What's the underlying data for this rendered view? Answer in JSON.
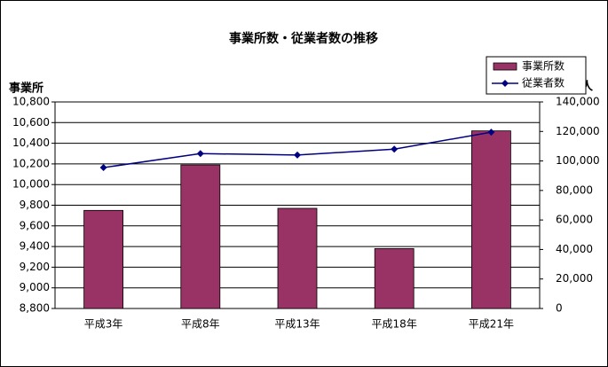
{
  "chart_data": {
    "type": "bar",
    "title": "事業所数・従業者数の推移",
    "y_label": "事業所",
    "y2_label": "人",
    "categories": [
      "平成3年",
      "平成8年",
      "平成13年",
      "平成18年",
      "平成21年"
    ],
    "series": [
      {
        "name": "事業所数",
        "type": "bar",
        "color": "#993366",
        "values": [
          9750,
          10190,
          9770,
          9380,
          10520
        ]
      },
      {
        "name": "従業者数",
        "type": "line",
        "axis": "y2",
        "color": "#000080",
        "values": [
          95500,
          105000,
          104000,
          108000,
          119500
        ]
      }
    ],
    "ylim": [
      8800,
      10800
    ],
    "yticks": [
      {
        "value": 8800,
        "label": "8,800"
      },
      {
        "value": 9000,
        "label": "9,000"
      },
      {
        "value": 9200,
        "label": "9,200"
      },
      {
        "value": 9400,
        "label": "9,400"
      },
      {
        "value": 9600,
        "label": "9,600"
      },
      {
        "value": 9800,
        "label": "9,800"
      },
      {
        "value": 10000,
        "label": "10,000"
      },
      {
        "value": 10200,
        "label": "10,200"
      },
      {
        "value": 10400,
        "label": "10,400"
      },
      {
        "value": 10600,
        "label": "10,600"
      },
      {
        "value": 10800,
        "label": "10,800"
      }
    ],
    "y2lim": [
      0,
      140000
    ],
    "y2ticks": [
      0,
      {
        "value": 20000,
        "label": "20,000"
      },
      {
        "value": 40000,
        "label": "40,000"
      },
      {
        "value": 60000,
        "label": "60,000"
      },
      {
        "value": 80000,
        "label": "80,000"
      },
      {
        "value": 100000,
        "label": "100,000"
      },
      {
        "value": 120000,
        "label": "120,000"
      },
      {
        "value": 140000,
        "label": "140,000"
      }
    ],
    "grid": true,
    "legend": "top-right"
  }
}
